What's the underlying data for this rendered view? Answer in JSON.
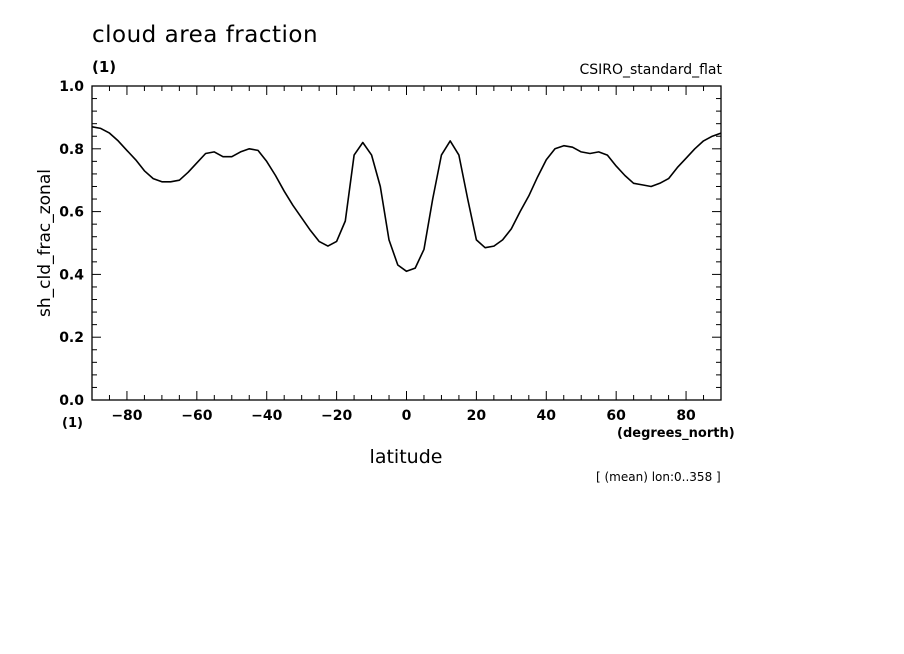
{
  "title": "cloud area fraction",
  "units": "(1)",
  "source": "CSIRO_standard_flat",
  "note": "[ (mean) lon:0..358 ]",
  "chart_data": {
    "type": "line",
    "title": "cloud area fraction",
    "xlabel": "latitude",
    "x_units": "(degrees_north)",
    "ylabel": "sh_cld_frac_zonal",
    "y_units": "(1)",
    "xlim": [
      -90,
      90
    ],
    "ylim": [
      0,
      1
    ],
    "xticks": [
      -80,
      -60,
      -40,
      -20,
      0,
      20,
      40,
      60,
      80
    ],
    "yticks": [
      0.0,
      0.2,
      0.4,
      0.6,
      0.8,
      1.0
    ],
    "xtick_labels": [
      "−80",
      "−60",
      "−40",
      "−20",
      "0",
      "20",
      "40",
      "60",
      "80"
    ],
    "ytick_labels": [
      "0.0",
      "0.2",
      "0.4",
      "0.6",
      "0.8",
      "1.0"
    ],
    "grid": false,
    "series": [
      {
        "x": [
          -90,
          -87.5,
          -85,
          -82.5,
          -80,
          -77.5,
          -75,
          -72.5,
          -70,
          -67.5,
          -65,
          -62.5,
          -60,
          -57.5,
          -55,
          -52.5,
          -50,
          -47.5,
          -45,
          -42.5,
          -40,
          -37.5,
          -35,
          -32.5,
          -30,
          -27.5,
          -25,
          -22.5,
          -20,
          -17.5,
          -15,
          -12.5,
          -10,
          -7.5,
          -5,
          -2.5,
          0,
          2.5,
          5,
          7.5,
          10,
          12.5,
          15,
          17.5,
          20,
          22.5,
          25,
          27.5,
          30,
          32.5,
          35,
          37.5,
          40,
          42.5,
          45,
          47.5,
          50,
          52.5,
          55,
          57.5,
          60,
          62.5,
          65,
          67.5,
          70,
          72.5,
          75,
          77.5,
          80,
          82.5,
          85,
          87.5,
          90
        ],
        "y": [
          0.87,
          0.865,
          0.85,
          0.825,
          0.795,
          0.765,
          0.73,
          0.705,
          0.695,
          0.695,
          0.7,
          0.725,
          0.755,
          0.785,
          0.79,
          0.775,
          0.775,
          0.79,
          0.8,
          0.795,
          0.76,
          0.715,
          0.665,
          0.62,
          0.58,
          0.54,
          0.505,
          0.49,
          0.505,
          0.57,
          0.78,
          0.82,
          0.78,
          0.68,
          0.51,
          0.43,
          0.41,
          0.42,
          0.48,
          0.64,
          0.78,
          0.825,
          0.78,
          0.64,
          0.51,
          0.485,
          0.49,
          0.51,
          0.545,
          0.6,
          0.65,
          0.71,
          0.765,
          0.8,
          0.81,
          0.805,
          0.79,
          0.785,
          0.79,
          0.78,
          0.745,
          0.715,
          0.69,
          0.685,
          0.68,
          0.69,
          0.705,
          0.74,
          0.77,
          0.8,
          0.825,
          0.84,
          0.85
        ]
      }
    ]
  }
}
